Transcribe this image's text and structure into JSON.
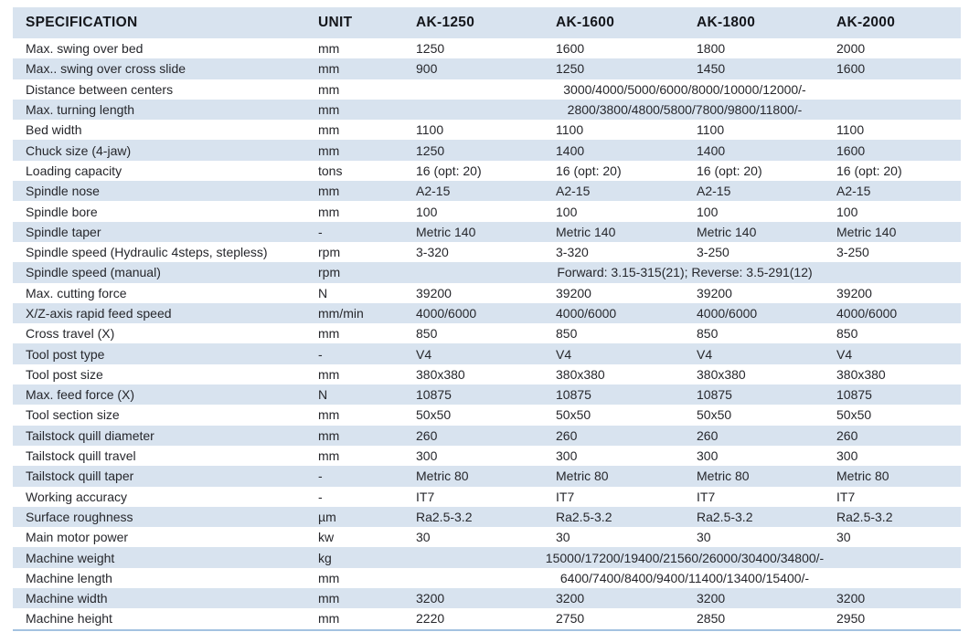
{
  "table": {
    "columns": [
      "SPECIFICATION",
      "UNIT",
      "AK-1250",
      "AK-1600",
      "AK-1800",
      "AK-2000"
    ],
    "rows": [
      {
        "spec": "Max. swing over bed",
        "unit": "mm",
        "values": [
          "1250",
          "1600",
          "1800",
          "2000"
        ]
      },
      {
        "spec": "Max.. swing over cross slide",
        "unit": "mm",
        "values": [
          "900",
          "1250",
          "1450",
          "1600"
        ]
      },
      {
        "spec": "Distance between centers",
        "unit": "mm",
        "merged": "3000/4000/5000/6000/8000/10000/12000/-"
      },
      {
        "spec": "Max. turning length",
        "unit": "mm",
        "merged": "2800/3800/4800/5800/7800/9800/11800/-"
      },
      {
        "spec": "Bed width",
        "unit": "mm",
        "values": [
          "1100",
          "1100",
          "1100",
          "1100"
        ]
      },
      {
        "spec": "Chuck size (4-jaw)",
        "unit": "mm",
        "values": [
          "1250",
          "1400",
          "1400",
          "1600"
        ]
      },
      {
        "spec": "Loading capacity",
        "unit": "tons",
        "values": [
          "16 (opt: 20)",
          "16 (opt: 20)",
          "16 (opt: 20)",
          "16 (opt: 20)"
        ]
      },
      {
        "spec": "Spindle nose",
        "unit": "mm",
        "values": [
          "A2-15",
          "A2-15",
          "A2-15",
          "A2-15"
        ]
      },
      {
        "spec": "Spindle bore",
        "unit": "mm",
        "values": [
          "100",
          "100",
          "100",
          "100"
        ]
      },
      {
        "spec": "Spindle taper",
        "unit": "-",
        "values": [
          "Metric 140",
          "Metric 140",
          "Metric 140",
          "Metric 140"
        ]
      },
      {
        "spec": "Spindle speed (Hydraulic 4steps, stepless)",
        "unit": "rpm",
        "values": [
          "3-320",
          "3-320",
          "3-250",
          "3-250"
        ]
      },
      {
        "spec": "Spindle speed (manual)",
        "unit": "rpm",
        "merged": "Forward: 3.15-315(21); Reverse: 3.5-291(12)"
      },
      {
        "spec": "Max. cutting force",
        "unit": "N",
        "values": [
          "39200",
          "39200",
          "39200",
          "39200"
        ]
      },
      {
        "spec": "X/Z-axis rapid feed speed",
        "unit": "mm/min",
        "values": [
          "4000/6000",
          "4000/6000",
          "4000/6000",
          "4000/6000"
        ]
      },
      {
        "spec": "Cross travel (X)",
        "unit": "mm",
        "values": [
          "850",
          "850",
          "850",
          "850"
        ]
      },
      {
        "spec": "Tool post type",
        "unit": "-",
        "values": [
          "V4",
          "V4",
          "V4",
          "V4"
        ]
      },
      {
        "spec": "Tool post size",
        "unit": "mm",
        "values": [
          "380x380",
          "380x380",
          "380x380",
          "380x380"
        ]
      },
      {
        "spec": "Max. feed force (X)",
        "unit": "N",
        "values": [
          "10875",
          "10875",
          "10875",
          "10875"
        ]
      },
      {
        "spec": "Tool section size",
        "unit": "mm",
        "values": [
          "50x50",
          "50x50",
          "50x50",
          "50x50"
        ]
      },
      {
        "spec": "Tailstock quill diameter",
        "unit": "mm",
        "values": [
          "260",
          "260",
          "260",
          "260"
        ]
      },
      {
        "spec": "Tailstock quill travel",
        "unit": "mm",
        "values": [
          "300",
          "300",
          "300",
          "300"
        ]
      },
      {
        "spec": "Tailstock quill taper",
        "unit": "-",
        "values": [
          "Metric 80",
          "Metric 80",
          "Metric 80",
          "Metric 80"
        ]
      },
      {
        "spec": "Working accuracy",
        "unit": "-",
        "values": [
          "IT7",
          "IT7",
          "IT7",
          "IT7"
        ]
      },
      {
        "spec": "Surface roughness",
        "unit": "µm",
        "values": [
          "Ra2.5-3.2",
          "Ra2.5-3.2",
          "Ra2.5-3.2",
          "Ra2.5-3.2"
        ]
      },
      {
        "spec": "Main motor power",
        "unit": "kw",
        "values": [
          "30",
          "30",
          "30",
          "30"
        ]
      },
      {
        "spec": "Machine weight",
        "unit": "kg",
        "merged": "15000/17200/19400/21560/26000/30400/34800/-"
      },
      {
        "spec": "Machine length",
        "unit": "mm",
        "merged": "6400/7400/8400/9400/11400/13400/15400/-"
      },
      {
        "spec": "Machine width",
        "unit": "mm",
        "values": [
          "3200",
          "3200",
          "3200",
          "3200"
        ]
      },
      {
        "spec": "Machine height",
        "unit": "mm",
        "values": [
          "2220",
          "2750",
          "2850",
          "2950"
        ]
      }
    ]
  },
  "colors": {
    "stripe_bg": "#d8e3ef",
    "header_bg": "#d8e3ef",
    "text": "#26272c",
    "header_text": "#15171c",
    "bottom_border": "#a3c2e0"
  }
}
